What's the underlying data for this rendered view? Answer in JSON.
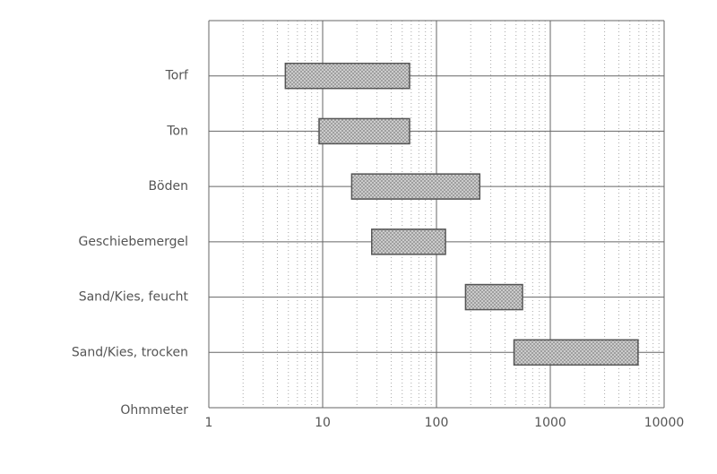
{
  "chart_data": {
    "type": "rangebar",
    "categories": [
      "Torf",
      "Ton",
      "Böden",
      "Geschiebemergel",
      "Sand/Kies, feucht",
      "Sand/Kies, trocken"
    ],
    "low": [
      4.7,
      9.3,
      18,
      27,
      180,
      480
    ],
    "high": [
      58,
      58,
      240,
      120,
      570,
      5900
    ],
    "color": "#9a9a9a",
    "x_label": "Ohmmeter",
    "xscale": "log",
    "xlim": [
      1,
      10000
    ],
    "xticks": [
      1,
      10,
      100,
      1000,
      10000
    ],
    "grid": true
  }
}
